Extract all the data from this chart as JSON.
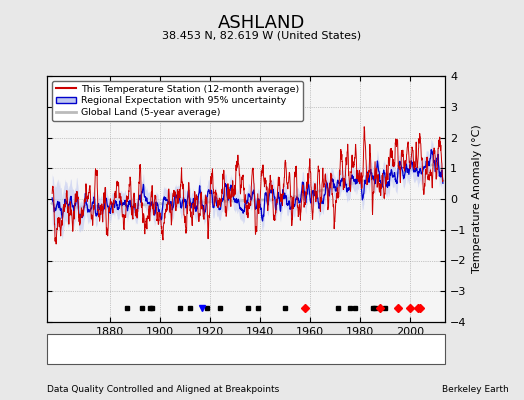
{
  "title": "ASHLAND",
  "subtitle": "38.453 N, 82.619 W (United States)",
  "footer_left": "Data Quality Controlled and Aligned at Breakpoints",
  "footer_right": "Berkeley Earth",
  "ylabel": "Temperature Anomaly (°C)",
  "ylim": [
    -4,
    4
  ],
  "xlim": [
    1855,
    2014
  ],
  "yticks": [
    -4,
    -3,
    -2,
    -1,
    0,
    1,
    2,
    3,
    4
  ],
  "xticks": [
    1880,
    1900,
    1920,
    1940,
    1960,
    1980,
    2000
  ],
  "bg_color": "#e8e8e8",
  "plot_bg_color": "#f5f5f5",
  "station_color": "#cc0000",
  "regional_color": "#0000cc",
  "regional_fill_color": "#c0c8f0",
  "global_color": "#bbbbbb",
  "legend_labels": [
    "This Temperature Station (12-month average)",
    "Regional Expectation with 95% uncertainty",
    "Global Land (5-year average)"
  ],
  "marker_events": {
    "station_move_years": [
      1958,
      1988,
      1995,
      2000,
      2003,
      2004
    ],
    "record_gap_years": [],
    "tobs_change_years": [
      1917
    ],
    "empirical_break_years": [
      1887,
      1893,
      1896,
      1897,
      1908,
      1912,
      1919,
      1924,
      1935,
      1939,
      1950,
      1971,
      1976,
      1978,
      1985,
      1986,
      1990
    ]
  },
  "seed": 42
}
